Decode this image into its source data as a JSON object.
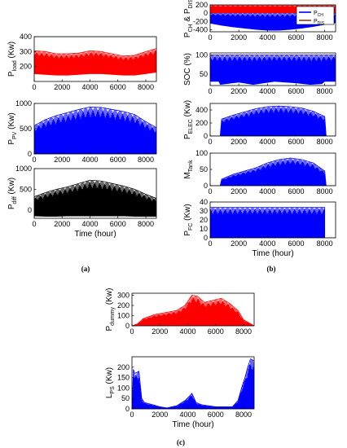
{
  "figure": {
    "panel_labels": [
      "(a)",
      "(b)",
      "(c)"
    ]
  },
  "chart_data": [
    {
      "id": "pload",
      "type": "area",
      "ylabel": "P",
      "ylabel_sub": "load",
      "ylabel_tail": "(Kw)",
      "xlim": [
        0,
        8760
      ],
      "ylim": [
        100,
        400
      ],
      "xticks": [
        0,
        2000,
        4000,
        6000,
        8000
      ],
      "xtick_labels": [
        "0",
        "2000",
        "4000",
        "6000",
        "8000"
      ],
      "yticks": [
        200,
        300,
        400
      ],
      "ytick_labels": [
        "200",
        "300",
        "400"
      ],
      "xlabel": "",
      "series": [
        {
          "color": "#ff0000",
          "x": [
            0,
            800,
            1600,
            2400,
            3200,
            4000,
            4800,
            5600,
            6400,
            7200,
            8000,
            8760
          ],
          "upper": [
            305,
            300,
            285,
            285,
            290,
            305,
            300,
            285,
            270,
            275,
            300,
            320
          ],
          "lower": [
            150,
            145,
            140,
            140,
            145,
            150,
            150,
            145,
            140,
            140,
            150,
            160
          ]
        },
        {
          "color": "#00a651",
          "x": [
            0,
            8760
          ],
          "upper": [
            400,
            400
          ],
          "lower": [
            398,
            398
          ]
        }
      ]
    },
    {
      "id": "ppv",
      "type": "area",
      "ylabel": "P",
      "ylabel_sub": "PV",
      "ylabel_tail": "(Kw)",
      "xlim": [
        0,
        8760
      ],
      "ylim": [
        0,
        1000
      ],
      "xticks": [
        0,
        2000,
        4000,
        6000,
        8000
      ],
      "xtick_labels": [
        "0",
        "2000",
        "4000",
        "6000",
        "8000"
      ],
      "yticks": [
        0,
        500,
        1000
      ],
      "ytick_labels": [
        "0",
        "500",
        "1000"
      ],
      "xlabel": "",
      "series": [
        {
          "color": "#0000ff",
          "x": [
            0,
            800,
            1600,
            2400,
            3200,
            4000,
            4800,
            5600,
            6400,
            7200,
            8000,
            8760
          ],
          "upper": [
            560,
            680,
            760,
            820,
            880,
            930,
            920,
            880,
            840,
            780,
            640,
            520
          ],
          "lower": [
            0,
            0,
            0,
            0,
            0,
            0,
            0,
            0,
            0,
            0,
            0,
            0
          ]
        }
      ]
    },
    {
      "id": "pdiff",
      "type": "area",
      "ylabel": "P",
      "ylabel_sub": "diff",
      "ylabel_tail": "(Kw)",
      "xlim": [
        0,
        8760
      ],
      "ylim": [
        -200,
        1000
      ],
      "xticks": [
        0,
        2000,
        4000,
        6000,
        8000
      ],
      "xtick_labels": [
        "0",
        "2000",
        "4000",
        "6000",
        "8000"
      ],
      "yticks": [
        0,
        500,
        1000
      ],
      "ytick_labels": [
        "0",
        "500",
        "1000"
      ],
      "xlabel": "Time (hour)",
      "series": [
        {
          "color": "#000000",
          "x": [
            0,
            800,
            1600,
            2400,
            3200,
            4000,
            4800,
            5600,
            6400,
            7200,
            8000,
            8760
          ],
          "upper": [
            320,
            420,
            500,
            560,
            640,
            720,
            700,
            640,
            580,
            500,
            380,
            280
          ],
          "lower": [
            -150,
            -160,
            -160,
            -150,
            -150,
            -150,
            -150,
            -150,
            -150,
            -160,
            -160,
            -160
          ]
        }
      ]
    },
    {
      "id": "pch",
      "type": "area",
      "ylabel": "P",
      "ylabel_sub": "CH",
      "ylabel_mid": " & P",
      "ylabel_sub2": "DIS",
      "xlim": [
        0,
        8760
      ],
      "ylim": [
        -450,
        200
      ],
      "xticks": [
        0,
        2000,
        4000,
        6000,
        8000
      ],
      "xtick_labels": [
        "0",
        "2000",
        "4000",
        "6000",
        "8000"
      ],
      "yticks": [
        -400,
        -200,
        0,
        200
      ],
      "ytick_labels": [
        "-400",
        "-200",
        "0",
        "200"
      ],
      "xlabel": "",
      "legend": {
        "position": "top-right",
        "entries": [
          {
            "label": "P",
            "sub": "CH",
            "color": "#0000ff"
          },
          {
            "label": "P",
            "sub": "DIS",
            "color": "#8b4513"
          }
        ]
      },
      "series": [
        {
          "color": "#0000ff",
          "x": [
            0,
            800,
            1600,
            2400,
            3200,
            4000,
            4800,
            5600,
            6400,
            7200,
            8000,
            8760
          ],
          "upper": [
            0,
            0,
            0,
            0,
            0,
            0,
            0,
            0,
            0,
            0,
            0,
            0
          ],
          "lower": [
            -250,
            -300,
            -340,
            -370,
            -400,
            -420,
            -420,
            -400,
            -370,
            -330,
            -280,
            -240
          ]
        },
        {
          "color": "#ff0000",
          "x": [
            0,
            8760
          ],
          "upper": [
            200,
            200
          ],
          "lower": [
            0,
            0
          ]
        }
      ]
    },
    {
      "id": "soc",
      "type": "area",
      "ylabel": "SOC (%)",
      "xlim": [
        0,
        8760
      ],
      "ylim": [
        20,
        105
      ],
      "xticks": [
        0,
        2000,
        4000,
        6000,
        8000
      ],
      "xtick_labels": [
        "0",
        "2000",
        "4000",
        "6000",
        "8000"
      ],
      "yticks": [
        50,
        100
      ],
      "ytick_labels": [
        "50",
        "100"
      ],
      "xlabel": "",
      "series": [
        {
          "color": "#0000ff",
          "x": [
            0,
            600,
            700,
            2000,
            3000,
            4500,
            6000,
            7000,
            7800,
            8000,
            8760
          ],
          "upper": [
            100,
            100,
            100,
            100,
            100,
            100,
            100,
            100,
            100,
            100,
            100
          ],
          "lower": [
            30,
            30,
            22,
            28,
            22,
            30,
            26,
            22,
            24,
            30,
            30
          ]
        }
      ]
    },
    {
      "id": "pelec",
      "type": "area",
      "ylabel": "P",
      "ylabel_sub": "ELEC",
      "ylabel_tail": "(Kw)",
      "xlim": [
        0,
        8760
      ],
      "ylim": [
        0,
        500
      ],
      "xticks": [
        0,
        2000,
        4000,
        6000,
        8000
      ],
      "xtick_labels": [
        "0",
        "2000",
        "4000",
        "6000",
        "8000"
      ],
      "yticks": [
        0,
        200,
        400
      ],
      "ytick_labels": [
        "0",
        "200",
        "400"
      ],
      "xlabel": "",
      "series": [
        {
          "color": "#0000ff",
          "x": [
            0,
            700,
            800,
            1600,
            2400,
            3200,
            4000,
            4800,
            5600,
            6400,
            7200,
            8000,
            8100,
            8760
          ],
          "upper": [
            0,
            0,
            260,
            320,
            370,
            420,
            450,
            460,
            450,
            430,
            380,
            300,
            0,
            0
          ],
          "lower": [
            0,
            0,
            0,
            0,
            0,
            0,
            0,
            0,
            0,
            0,
            0,
            0,
            0,
            0
          ]
        }
      ]
    },
    {
      "id": "mtank",
      "type": "area",
      "ylabel": "M",
      "ylabel_sub": "Tank",
      "xlim": [
        0,
        8760
      ],
      "ylim": [
        0,
        100
      ],
      "xticks": [
        0,
        2000,
        4000,
        6000,
        8000
      ],
      "xtick_labels": [
        "0",
        "2000",
        "4000",
        "6000",
        "8000"
      ],
      "yticks": [
        0,
        50,
        100
      ],
      "ytick_labels": [
        "0",
        "50",
        "100"
      ],
      "xlabel": "",
      "series": [
        {
          "color": "#0000ff",
          "x": [
            0,
            700,
            800,
            1600,
            2400,
            3200,
            4000,
            4800,
            5600,
            6400,
            7200,
            8000,
            8100,
            8760
          ],
          "upper": [
            0,
            0,
            20,
            35,
            45,
            55,
            70,
            80,
            85,
            80,
            70,
            45,
            0,
            0
          ],
          "lower": [
            0,
            0,
            0,
            0,
            0,
            0,
            0,
            0,
            0,
            0,
            0,
            0,
            0,
            0
          ]
        }
      ]
    },
    {
      "id": "pfc",
      "type": "area",
      "ylabel": "P",
      "ylabel_sub": "FC",
      "ylabel_tail": "(Kw)",
      "xlim": [
        0,
        8760
      ],
      "ylim": [
        0,
        40
      ],
      "xticks": [
        0,
        2000,
        4000,
        6000,
        8000
      ],
      "xtick_labels": [
        "0",
        "2000",
        "4000",
        "6000",
        "8000"
      ],
      "yticks": [
        0,
        10,
        20,
        30,
        40
      ],
      "ytick_labels": [
        "0",
        "10",
        "20",
        "30",
        "40"
      ],
      "xlabel": "Time (hour)",
      "series": [
        {
          "color": "#0000ff",
          "x": [
            0,
            8000,
            8001,
            8760
          ],
          "upper": [
            34,
            34,
            0,
            0
          ],
          "lower": [
            0,
            0,
            0,
            0
          ]
        }
      ]
    },
    {
      "id": "pdummy",
      "type": "area",
      "ylabel": "P",
      "ylabel_sub": "dummy",
      "ylabel_tail": "(Kw)",
      "xlim": [
        0,
        8760
      ],
      "ylim": [
        0,
        320
      ],
      "xticks": [
        0,
        2000,
        4000,
        6000,
        8000
      ],
      "xtick_labels": [
        "0",
        "2000",
        "4000",
        "6000",
        "8000"
      ],
      "yticks": [
        0,
        100,
        200,
        300
      ],
      "ytick_labels": [
        "0",
        "100",
        "200",
        "300"
      ],
      "xlabel": "",
      "series": [
        {
          "color": "#ff0000",
          "x": [
            0,
            400,
            800,
            1600,
            2400,
            3200,
            3800,
            4300,
            4700,
            5200,
            5800,
            6400,
            7000,
            7600,
            8000,
            8760
          ],
          "upper": [
            0,
            20,
            70,
            110,
            130,
            150,
            200,
            300,
            290,
            230,
            250,
            270,
            220,
            150,
            60,
            0
          ],
          "lower": [
            0,
            0,
            0,
            0,
            0,
            0,
            0,
            0,
            0,
            0,
            0,
            0,
            0,
            0,
            0,
            0
          ]
        }
      ]
    },
    {
      "id": "lps",
      "type": "area",
      "ylabel": "L",
      "ylabel_sub": "PS",
      "ylabel_tail": "(Kw)",
      "xlim": [
        0,
        8760
      ],
      "ylim": [
        0,
        250
      ],
      "xticks": [
        0,
        2000,
        4000,
        6000,
        8000
      ],
      "xtick_labels": [
        "0",
        "2000",
        "4000",
        "6000",
        "8000"
      ],
      "yticks": [
        0,
        50,
        100,
        150,
        200
      ],
      "ytick_labels": [
        "0",
        "50",
        "100",
        "150",
        "200"
      ],
      "xlabel": "Time (hour)",
      "series": [
        {
          "color": "#0000ff",
          "x": [
            0,
            100,
            200,
            500,
            700,
            900,
            1500,
            2000,
            2500,
            3200,
            3800,
            4100,
            4300,
            4600,
            5000,
            5500,
            6000,
            6500,
            7200,
            7600,
            7900,
            8100,
            8300,
            8500,
            8760
          ],
          "upper": [
            0,
            190,
            170,
            180,
            50,
            30,
            20,
            10,
            5,
            15,
            40,
            60,
            75,
            30,
            20,
            15,
            10,
            10,
            10,
            40,
            110,
            150,
            200,
            240,
            230
          ],
          "lower": [
            0,
            0,
            0,
            0,
            0,
            0,
            0,
            0,
            0,
            0,
            0,
            0,
            0,
            0,
            0,
            0,
            0,
            0,
            0,
            0,
            0,
            0,
            0,
            0,
            0
          ]
        }
      ]
    }
  ]
}
